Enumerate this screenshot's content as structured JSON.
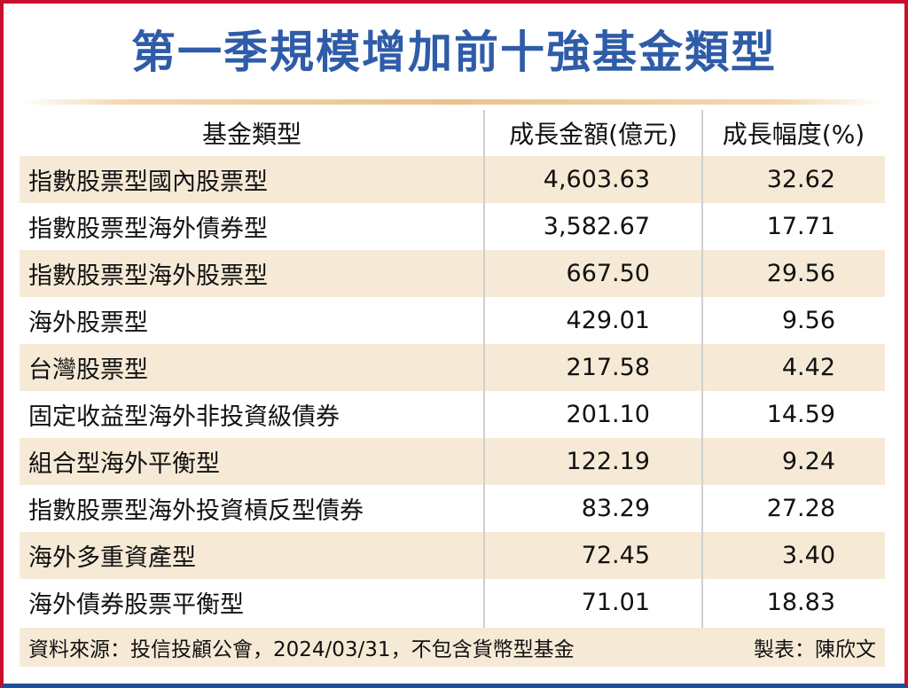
{
  "title": "第一季規模增加前十強基金類型",
  "chart_data": {
    "type": "table",
    "title": "第一季規模增加前十強基金類型",
    "columns": [
      "基金類型",
      "成長金額(億元)",
      "成長幅度(%)"
    ],
    "rows": [
      {
        "type": "指數股票型國內股票型",
        "amount": "4,603.63",
        "pct": "32.62"
      },
      {
        "type": "指數股票型海外債券型",
        "amount": "3,582.67",
        "pct": "17.71"
      },
      {
        "type": "指數股票型海外股票型",
        "amount": "667.50",
        "pct": "29.56"
      },
      {
        "type": "海外股票型",
        "amount": "429.01",
        "pct": "9.56"
      },
      {
        "type": "台灣股票型",
        "amount": "217.58",
        "pct": "4.42"
      },
      {
        "type": "固定收益型海外非投資級債券",
        "amount": "201.10",
        "pct": "14.59"
      },
      {
        "type": "組合型海外平衡型",
        "amount": "122.19",
        "pct": "9.24"
      },
      {
        "type": "指數股票型海外投資槓反型債券",
        "amount": "83.29",
        "pct": "27.28"
      },
      {
        "type": "海外多重資產型",
        "amount": "72.45",
        "pct": "3.40"
      },
      {
        "type": "海外債券股票平衡型",
        "amount": "71.01",
        "pct": "18.83"
      }
    ],
    "source": "資料來源：投信投顧公會，2024/03/31，不包含貨幣型基金",
    "maker": "製表：陳欣文"
  },
  "colors": {
    "title": "#2f5ca8",
    "row_shade": "#f6ead6",
    "border_top": "#c8102e",
    "border_bottom": "#1f4e9e"
  }
}
